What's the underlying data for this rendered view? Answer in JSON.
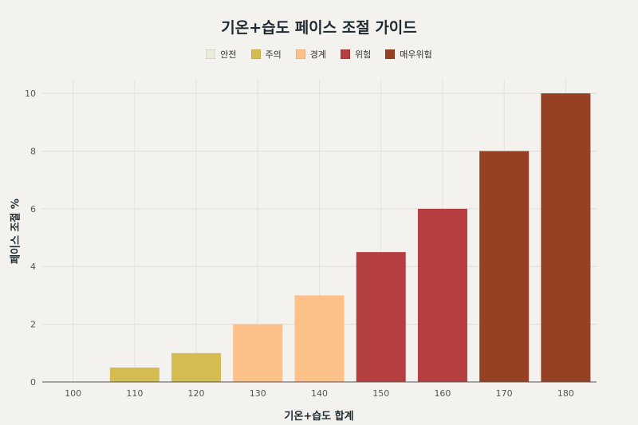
{
  "chart_data": {
    "type": "bar",
    "title": "기온+습도 페이스 조절 가이드",
    "xlabel": "기온+습도 합계",
    "ylabel": "페이스 조절 %",
    "categories": [
      "100",
      "110",
      "120",
      "130",
      "140",
      "150",
      "160",
      "170",
      "180"
    ],
    "values": [
      0,
      0.5,
      1,
      2,
      3,
      4.5,
      6,
      8,
      10
    ],
    "bar_levels": [
      "안전",
      "주의",
      "주의",
      "경계",
      "경계",
      "위험",
      "위험",
      "매우위험",
      "매우위험"
    ],
    "ylim": [
      0,
      10.5
    ],
    "yticks": [
      0,
      2,
      4,
      6,
      8,
      10
    ],
    "grid": true,
    "legend_position": "top-center",
    "legend": [
      {
        "label": "안전",
        "color": "#e9ecd6"
      },
      {
        "label": "주의",
        "color": "#d4bc50"
      },
      {
        "label": "경계",
        "color": "#fdc088"
      },
      {
        "label": "위험",
        "color": "#b53f40"
      },
      {
        "label": "매우위험",
        "color": "#964124"
      }
    ]
  }
}
